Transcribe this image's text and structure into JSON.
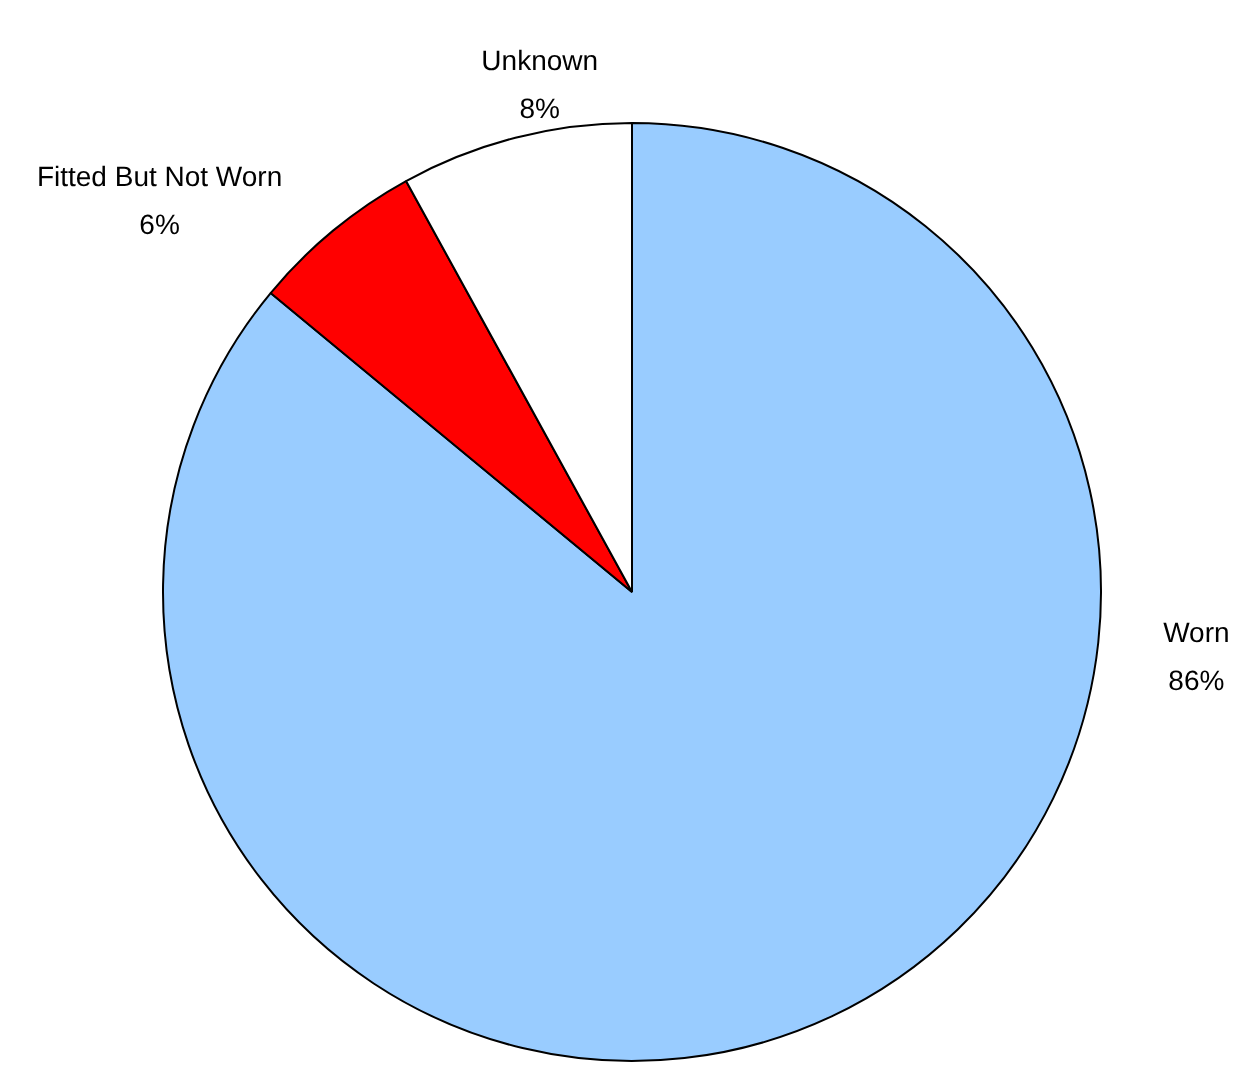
{
  "chart_data": {
    "type": "pie",
    "categories": [
      "Worn",
      "Fitted But Not Worn",
      "Unknown"
    ],
    "values": [
      86,
      6,
      8
    ],
    "colors": [
      "#99ccff",
      "#ff0000",
      "#ffffff"
    ],
    "value_labels": [
      "86%",
      "6%",
      "8%"
    ],
    "legend": false
  }
}
